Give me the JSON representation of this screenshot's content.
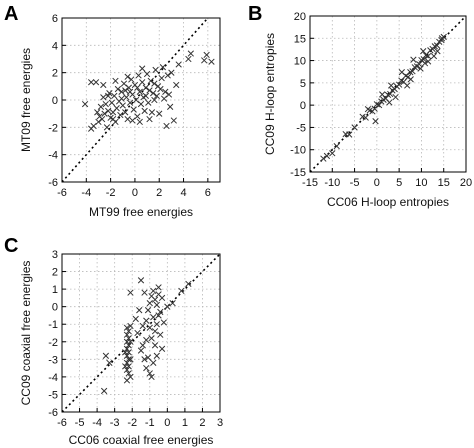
{
  "chart_data": [
    {
      "type": "scatter",
      "panel_label": "A",
      "xlabel": "MT99 free energies",
      "ylabel": "MT09 free energies",
      "xlim": [
        -6,
        7
      ],
      "ylim": [
        -6,
        6
      ],
      "xticks": [
        -6,
        -4,
        -2,
        0,
        2,
        4,
        6
      ],
      "yticks": [
        -6,
        -4,
        -2,
        0,
        2,
        4,
        6
      ],
      "grid": true,
      "marker": "x",
      "diagonal_reference_line": true,
      "points": [
        [
          -4.1,
          -0.3
        ],
        [
          -3.6,
          -2.1
        ],
        [
          -3.4,
          -1.9
        ],
        [
          -3.2,
          1.3
        ],
        [
          -3.1,
          -0.9
        ],
        [
          -3.0,
          -1.6
        ],
        [
          -2.9,
          -1.2
        ],
        [
          -2.8,
          -0.5
        ],
        [
          -2.7,
          -1.4
        ],
        [
          -2.6,
          0.2
        ],
        [
          -2.5,
          -1.0
        ],
        [
          -2.4,
          -0.3
        ],
        [
          -2.3,
          -2.0
        ],
        [
          -2.2,
          -0.8
        ],
        [
          -2.1,
          0.5
        ],
        [
          -2.0,
          -1.3
        ],
        [
          -1.9,
          -0.2
        ],
        [
          -1.8,
          -0.9
        ],
        [
          -1.7,
          0.3
        ],
        [
          -1.6,
          -1.6
        ],
        [
          -1.5,
          -0.6
        ],
        [
          -1.4,
          0.8
        ],
        [
          -1.3,
          -0.1
        ],
        [
          -1.2,
          -1.1
        ],
        [
          -1.1,
          0.6
        ],
        [
          -1.0,
          -0.4
        ],
        [
          -0.9,
          1.2
        ],
        [
          -0.8,
          -0.9
        ],
        [
          -0.7,
          0.2
        ],
        [
          -0.6,
          -1.4
        ],
        [
          -0.5,
          0.9
        ],
        [
          -0.4,
          -0.2
        ],
        [
          -0.3,
          1.5
        ],
        [
          -0.2,
          0.4
        ],
        [
          -0.1,
          -0.7
        ],
        [
          0.0,
          1.1
        ],
        [
          0.1,
          0.0
        ],
        [
          0.2,
          -1.2
        ],
        [
          0.3,
          1.8
        ],
        [
          0.4,
          0.6
        ],
        [
          0.5,
          -0.3
        ],
        [
          0.6,
          1.3
        ],
        [
          0.7,
          0.2
        ],
        [
          0.8,
          -0.8
        ],
        [
          0.9,
          0.9
        ],
        [
          1.0,
          1.9
        ],
        [
          1.1,
          -0.2
        ],
        [
          1.2,
          0.7
        ],
        [
          1.3,
          1.4
        ],
        [
          1.4,
          -0.9
        ],
        [
          1.5,
          0.5
        ],
        [
          1.6,
          1.2
        ],
        [
          1.7,
          2.2
        ],
        [
          1.8,
          0.3
        ],
        [
          1.9,
          1.0
        ],
        [
          2.0,
          -1.0
        ],
        [
          2.1,
          0.8
        ],
        [
          2.2,
          1.6
        ],
        [
          2.3,
          2.4
        ],
        [
          2.4,
          0.1
        ],
        [
          2.5,
          0.6
        ],
        [
          2.6,
          -1.9
        ],
        [
          2.7,
          1.8
        ],
        [
          2.8,
          0.4
        ],
        [
          3.0,
          2.0
        ],
        [
          3.2,
          -1.5
        ],
        [
          3.4,
          1.1
        ],
        [
          3.6,
          2.6
        ],
        [
          4.4,
          3.0
        ],
        [
          4.6,
          3.4
        ],
        [
          5.7,
          2.9
        ],
        [
          5.9,
          3.3
        ],
        [
          6.3,
          2.8
        ],
        [
          -1.6,
          1.4
        ],
        [
          -0.6,
          1.7
        ],
        [
          0.6,
          2.3
        ],
        [
          -2.6,
          1.1
        ],
        [
          -3.6,
          1.3
        ],
        [
          1.2,
          -1.4
        ],
        [
          0.4,
          -1.6
        ],
        [
          -0.2,
          -1.5
        ],
        [
          -1.8,
          -1.4
        ],
        [
          2.9,
          -0.5
        ],
        [
          1.6,
          0.0
        ],
        [
          -1.1,
          0.1
        ],
        [
          -0.4,
          0.6
        ],
        [
          0.2,
          0.9
        ],
        [
          0.9,
          0.3
        ],
        [
          -2.2,
          0.3
        ],
        [
          -0.8,
          0.7
        ]
      ]
    },
    {
      "type": "scatter",
      "panel_label": "B",
      "xlabel": "CC06 H-loop entropies",
      "ylabel": "CC09 H-loop entropies",
      "xlim": [
        -15,
        20
      ],
      "ylim": [
        -15,
        20
      ],
      "xticks": [
        -15,
        -10,
        -5,
        0,
        5,
        10,
        15,
        20
      ],
      "yticks": [
        -15,
        -10,
        -5,
        0,
        5,
        10,
        15,
        20
      ],
      "grid": true,
      "marker": "x",
      "diagonal_reference_line": true,
      "points": [
        [
          -12.0,
          -12.0
        ],
        [
          -11.2,
          -11.4
        ],
        [
          -10.0,
          -10.8
        ],
        [
          -9.0,
          -9.2
        ],
        [
          -7.0,
          -6.5
        ],
        [
          -6.2,
          -6.6
        ],
        [
          -5.0,
          -5.0
        ],
        [
          -3.2,
          -2.6
        ],
        [
          -2.5,
          -2.8
        ],
        [
          -1.6,
          -1.2
        ],
        [
          -1.0,
          -1.4
        ],
        [
          -0.5,
          -0.8
        ],
        [
          0.0,
          0.2
        ],
        [
          0.5,
          0.0
        ],
        [
          1.0,
          0.8
        ],
        [
          1.5,
          1.2
        ],
        [
          2.0,
          1.5
        ],
        [
          2.5,
          2.3
        ],
        [
          3.0,
          2.5
        ],
        [
          3.5,
          3.3
        ],
        [
          4.0,
          3.6
        ],
        [
          4.5,
          4.2
        ],
        [
          5.0,
          4.6
        ],
        [
          5.5,
          5.5
        ],
        [
          6.0,
          5.2
        ],
        [
          6.5,
          6.6
        ],
        [
          7.0,
          6.3
        ],
        [
          7.5,
          7.4
        ],
        [
          8.0,
          7.6
        ],
        [
          8.5,
          8.5
        ],
        [
          9.0,
          8.7
        ],
        [
          9.5,
          9.2
        ],
        [
          10.0,
          10.1
        ],
        [
          10.5,
          10.3
        ],
        [
          11.0,
          11.2
        ],
        [
          11.5,
          11.0
        ],
        [
          12.0,
          12.3
        ],
        [
          12.5,
          12.6
        ],
        [
          13.0,
          13.2
        ],
        [
          13.5,
          13.4
        ],
        [
          14.0,
          14.2
        ],
        [
          14.5,
          14.6
        ],
        [
          15.0,
          15.3
        ],
        [
          -0.3,
          -3.6
        ],
        [
          2.8,
          0.6
        ],
        [
          4.2,
          1.8
        ],
        [
          6.8,
          4.4
        ],
        [
          9.8,
          8.2
        ],
        [
          11.5,
          9.8
        ],
        [
          12.8,
          11.0
        ],
        [
          5.6,
          7.4
        ],
        [
          8.2,
          10.2
        ],
        [
          10.4,
          12.1
        ],
        [
          1.2,
          2.4
        ],
        [
          -2.0,
          -0.9
        ],
        [
          7.6,
          5.8
        ],
        [
          3.2,
          4.4
        ],
        [
          13.6,
          12.1
        ],
        [
          14.6,
          15.0
        ],
        [
          10.8,
          9.4
        ]
      ]
    },
    {
      "type": "scatter",
      "panel_label": "C",
      "xlabel": "CC06 coaxial free energies",
      "ylabel": "CC09 coaxial free energies",
      "xlim": [
        -6,
        3
      ],
      "ylim": [
        -6,
        3
      ],
      "xticks": [
        -6,
        -5,
        -4,
        -3,
        -2,
        -1,
        0,
        1,
        2,
        3
      ],
      "yticks": [
        -6,
        -5,
        -4,
        -3,
        -2,
        -1,
        0,
        1,
        2,
        3
      ],
      "grid": true,
      "marker": "x",
      "diagonal_reference_line": true,
      "points": [
        [
          -3.6,
          -4.8
        ],
        [
          -3.5,
          -2.8
        ],
        [
          -3.3,
          -3.2
        ],
        [
          -2.3,
          -1.2
        ],
        [
          -2.3,
          -1.6
        ],
        [
          -2.3,
          -2.0
        ],
        [
          -2.3,
          -2.4
        ],
        [
          -2.3,
          -2.8
        ],
        [
          -2.3,
          -3.2
        ],
        [
          -2.3,
          -3.6
        ],
        [
          -2.2,
          -1.4
        ],
        [
          -2.2,
          -1.8
        ],
        [
          -2.2,
          -2.2
        ],
        [
          -2.2,
          -2.6
        ],
        [
          -2.2,
          -3.0
        ],
        [
          -2.2,
          -3.4
        ],
        [
          -2.2,
          -3.8
        ],
        [
          -2.1,
          -1.1
        ],
        [
          -2.1,
          -2.0
        ],
        [
          -2.1,
          -3.0
        ],
        [
          -2.1,
          -4.0
        ],
        [
          -2.3,
          -4.2
        ],
        [
          -2.4,
          -3.4
        ],
        [
          -2.4,
          -2.6
        ],
        [
          -2.1,
          0.8
        ],
        [
          -1.5,
          1.5
        ],
        [
          -1.3,
          0.8
        ],
        [
          -1.2,
          -0.8
        ],
        [
          -1.1,
          -0.2
        ],
        [
          -1.0,
          0.2
        ],
        [
          -1.0,
          -1.2
        ],
        [
          -0.9,
          0.6
        ],
        [
          -0.9,
          -1.8
        ],
        [
          -0.8,
          -0.6
        ],
        [
          -0.8,
          0.9
        ],
        [
          -0.7,
          -2.2
        ],
        [
          -0.7,
          0.4
        ],
        [
          -0.6,
          -1.0
        ],
        [
          -0.6,
          0.1
        ],
        [
          -0.5,
          0.7
        ],
        [
          -0.5,
          -0.5
        ],
        [
          -0.4,
          -1.6
        ],
        [
          -0.4,
          -0.3
        ],
        [
          -0.3,
          0.5
        ],
        [
          -0.3,
          -2.4
        ],
        [
          -1.5,
          -2.5
        ],
        [
          -1.3,
          -3.0
        ],
        [
          -1.2,
          -3.5
        ],
        [
          -1.0,
          -3.8
        ],
        [
          -0.8,
          -3.2
        ],
        [
          -1.6,
          -0.2
        ],
        [
          -1.4,
          -1.1
        ],
        [
          -1.2,
          -1.9
        ],
        [
          -1.1,
          -2.9
        ],
        [
          0.0,
          0.0
        ],
        [
          0.3,
          0.2
        ],
        [
          0.8,
          0.9
        ],
        [
          1.2,
          1.3
        ],
        [
          -0.6,
          -2.8
        ],
        [
          -0.9,
          -4.0
        ],
        [
          -1.7,
          -1.5
        ],
        [
          -0.2,
          -0.9
        ],
        [
          -0.5,
          1.1
        ],
        [
          -1.8,
          -0.7
        ],
        [
          -1.4,
          -2.2
        ],
        [
          -0.7,
          -1.4
        ]
      ]
    }
  ]
}
